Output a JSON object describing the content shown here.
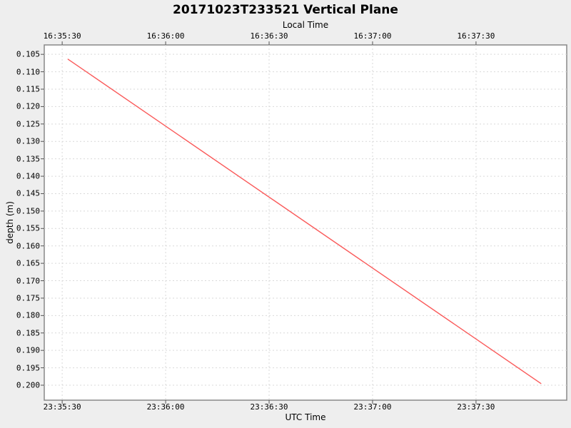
{
  "window": {
    "kind": "plot-figure",
    "background_color": "#eeeeee"
  },
  "chart_data": {
    "type": "line",
    "title": "20171023T233521 Vertical Plane",
    "top_axis": {
      "label": "Local Time",
      "tick_labels": [
        "16:35:30",
        "16:36:00",
        "16:36:30",
        "16:37:00",
        "16:37:30"
      ]
    },
    "bottom_axis": {
      "label": "UTC Time",
      "tick_labels": [
        "23:35:30",
        "23:36:00",
        "23:36:30",
        "23:37:00",
        "23:37:30"
      ]
    },
    "x_axis_mapping": {
      "seconds_origin": "23:35:00 UTC (16:35:00 local)",
      "tick_seconds": [
        30,
        60,
        90,
        120,
        150
      ],
      "domain_seconds": [
        24.8,
        176.3
      ]
    },
    "y_axis": {
      "label": "depth (m)",
      "tick_labels": [
        "0.105",
        "0.110",
        "0.115",
        "0.120",
        "0.125",
        "0.130",
        "0.135",
        "0.140",
        "0.145",
        "0.150",
        "0.155",
        "0.160",
        "0.165",
        "0.170",
        "0.175",
        "0.180",
        "0.185",
        "0.190",
        "0.195",
        "0.200"
      ],
      "tick_values": [
        0.105,
        0.11,
        0.115,
        0.12,
        0.125,
        0.13,
        0.135,
        0.14,
        0.145,
        0.15,
        0.155,
        0.16,
        0.165,
        0.17,
        0.175,
        0.18,
        0.185,
        0.19,
        0.195,
        0.2
      ],
      "domain": [
        0.1023,
        0.2043
      ],
      "orientation": "inverted (depth increases downward)"
    },
    "grid": {
      "shown": true,
      "style": "dashed",
      "color": "#d9d9d9"
    },
    "plot_background": "#ffffff",
    "plot_border_color": "#888888",
    "series": [
      {
        "name": "depth",
        "color": "#fa5a5a",
        "line_width": 1.4,
        "points": [
          {
            "utc": "23:35:32",
            "t_seconds": 31.7,
            "depth_m": 0.1064
          },
          {
            "utc": "23:37:49",
            "t_seconds": 168.8,
            "depth_m": 0.1995
          }
        ]
      }
    ]
  }
}
